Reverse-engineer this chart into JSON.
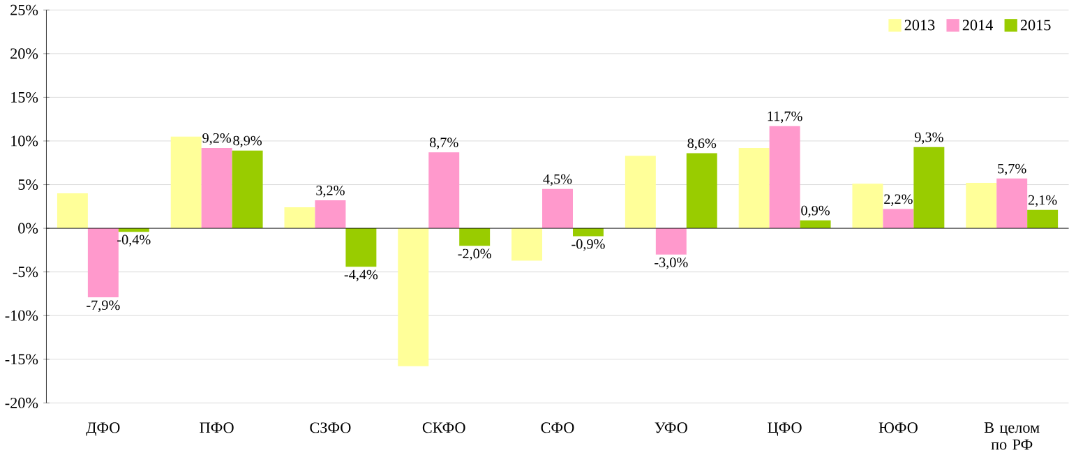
{
  "chart_data": {
    "type": "bar",
    "categories": [
      "ДФО",
      "ПФО",
      "СЗФО",
      "СКФО",
      "СФО",
      "УФО",
      "ЦФО",
      "ЮФО",
      "В целом по РФ"
    ],
    "series": [
      {
        "name": "2013",
        "color": "#ffff99",
        "values": [
          4.0,
          10.5,
          2.4,
          -15.8,
          -3.7,
          8.3,
          9.2,
          5.1,
          5.2
        ]
      },
      {
        "name": "2014",
        "color": "#ff99cc",
        "values": [
          -7.9,
          9.2,
          3.2,
          8.7,
          4.5,
          -3.0,
          11.7,
          2.2,
          5.7
        ],
        "value_labels": [
          "-7,9%",
          "9,2%",
          "3,2%",
          "8,7%",
          "4,5%",
          "-3,0%",
          "11,7%",
          "2,2%",
          "5,7%"
        ]
      },
      {
        "name": "2015",
        "color": "#99cc00",
        "values": [
          -0.4,
          8.9,
          -4.4,
          -2.0,
          -0.9,
          8.6,
          0.9,
          9.3,
          2.1
        ],
        "value_labels": [
          "-0,4%",
          "8,9%",
          "-4,4%",
          "-2,0%",
          "-0,9%",
          "8,6%",
          "0,9%",
          "9,3%",
          "2,1%"
        ]
      }
    ],
    "ylim": [
      -20,
      25
    ],
    "yticks": [
      {
        "value": -20,
        "label": "-20%"
      },
      {
        "value": -15,
        "label": "-15%"
      },
      {
        "value": -10,
        "label": "-10%"
      },
      {
        "value": -5,
        "label": "-5%"
      },
      {
        "value": 0,
        "label": "0%"
      },
      {
        "value": 5,
        "label": "5%"
      },
      {
        "value": 10,
        "label": "10%"
      },
      {
        "value": 15,
        "label": "15%"
      },
      {
        "value": 20,
        "label": "20%"
      },
      {
        "value": 25,
        "label": "25%"
      }
    ],
    "grid": "y",
    "legend": "top right"
  }
}
